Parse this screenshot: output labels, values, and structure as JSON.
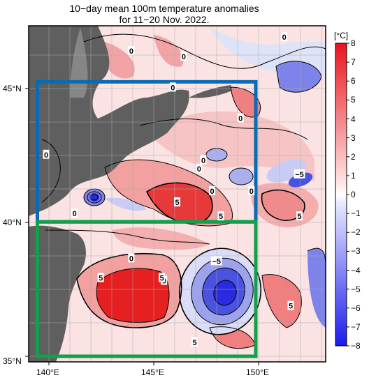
{
  "title": {
    "line1": "10−day mean 100m temperature anomalies",
    "line2": "for 11−20 Nov. 2022."
  },
  "axes": {
    "x_ticks": [
      "140°E",
      "145°E",
      "150°E"
    ],
    "y_ticks": [
      "45°N",
      "40°N",
      "35°N"
    ],
    "lon_range": [
      139.6,
      153.2
    ],
    "lat_range": [
      35.0,
      47.0
    ]
  },
  "colorbar": {
    "unit": "[°C]",
    "ticks": [
      "8",
      "7",
      "6",
      "5",
      "4",
      "3",
      "2",
      "1",
      "0",
      "−1",
      "−2",
      "−3",
      "−4",
      "−5",
      "−6",
      "−7",
      "−8"
    ],
    "warm_color": "#e8141c",
    "cold_color": "#1a1aee"
  },
  "contour_labels": [
    {
      "text": "0",
      "lon": 144.3,
      "lat": 46.1
    },
    {
      "text": "0",
      "lon": 146.7,
      "lat": 45.9
    },
    {
      "text": "0",
      "lon": 151.3,
      "lat": 46.6
    },
    {
      "text": "0",
      "lon": 146.2,
      "lat": 44.8
    },
    {
      "text": "0",
      "lon": 149.3,
      "lat": 43.7
    },
    {
      "text": "0",
      "lon": 140.4,
      "lat": 42.4
    },
    {
      "text": "0",
      "lon": 147.6,
      "lat": 42.2
    },
    {
      "text": "0",
      "lon": 147.4,
      "lat": 41.9
    },
    {
      "text": "0",
      "lon": 149.8,
      "lat": 41.1
    },
    {
      "text": "0",
      "lon": 148.0,
      "lat": 41.1
    },
    {
      "text": "0",
      "lon": 141.7,
      "lat": 40.3
    },
    {
      "text": "0",
      "lon": 144.3,
      "lat": 38.7
    },
    {
      "text": "0",
      "lon": 145.8,
      "lat": 37.9
    },
    {
      "text": "5",
      "lon": 146.4,
      "lat": 40.7
    },
    {
      "text": "5",
      "lon": 148.4,
      "lat": 40.2
    },
    {
      "text": "5",
      "lon": 152.0,
      "lat": 40.2
    },
    {
      "text": "5",
      "lon": 142.9,
      "lat": 38.0
    },
    {
      "text": "5",
      "lon": 145.7,
      "lat": 38.0
    },
    {
      "text": "5",
      "lon": 151.6,
      "lat": 37.0
    },
    {
      "text": "5",
      "lon": 147.2,
      "lat": 35.7
    },
    {
      "text": "−5",
      "lon": 152.0,
      "lat": 41.7
    },
    {
      "text": "−5",
      "lon": 148.2,
      "lat": 38.6
    }
  ],
  "regions": [
    {
      "color": "#0a6ab4",
      "lon": [
        140.0,
        150.0
      ],
      "lat": [
        40.0,
        45.0
      ]
    },
    {
      "color": "#12a04a",
      "lon": [
        140.0,
        150.0
      ],
      "lat": [
        35.2,
        40.0
      ]
    }
  ]
}
